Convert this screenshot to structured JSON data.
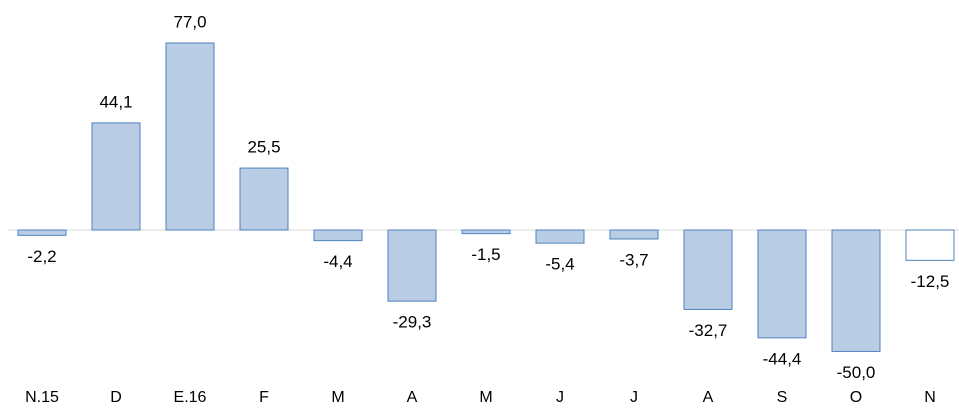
{
  "chart_data": {
    "type": "bar",
    "categories": [
      "N.15",
      "D",
      "E.16",
      "F",
      "M",
      "A",
      "M",
      "J",
      "J",
      "A",
      "S",
      "O",
      "N"
    ],
    "values": [
      -2.2,
      44.1,
      77.0,
      25.5,
      -4.4,
      -29.3,
      -1.5,
      -5.4,
      -3.7,
      -32.7,
      -44.4,
      -50.0,
      -12.5
    ],
    "value_labels": [
      "-2,2",
      "44,1",
      "77,0",
      "25,5",
      "-4,4",
      "-29,3",
      "-1,5",
      "-5,4",
      "-3,7",
      "-32,7",
      "-44,4",
      "-50,0",
      "-12,5"
    ],
    "colors": [
      "#b9cde5",
      "#b9cde5",
      "#b9cde5",
      "#b9cde5",
      "#b9cde5",
      "#b9cde5",
      "#b9cde5",
      "#b9cde5",
      "#b9cde5",
      "#b9cde5",
      "#b9cde5",
      "#b9cde5",
      "#ffffff"
    ],
    "edge_color": "#4f81bd"
  }
}
